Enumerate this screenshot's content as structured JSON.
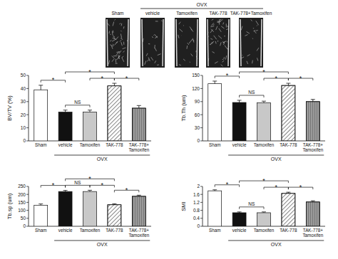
{
  "figure": {
    "group_label": "OVX",
    "panels": [
      "Sham",
      "vehicle",
      "Tamoxifen",
      "TAK-778",
      "TAK-778+Tamoxifen"
    ],
    "group_members": [
      "vehicle",
      "Tamoxifen",
      "TAK-778",
      "TAK-778+Tamoxifen"
    ]
  },
  "chart_data": [
    {
      "type": "bar",
      "y_label": "BV/TV (%)",
      "categories": [
        "Sham",
        "vehicle",
        "Tamoxifen",
        "TAK-778",
        "TAK-778+Tamoxifen"
      ],
      "values": [
        39,
        22,
        22,
        42,
        25
      ],
      "errors": [
        3.5,
        1.5,
        1.5,
        2,
        2
      ],
      "colors": [
        "#ffffff",
        "#111111",
        "#c8c8c8",
        "#ffffff",
        "#9a9a9a"
      ],
      "ylim": [
        0,
        50
      ],
      "yticks": [
        0,
        10,
        20,
        30,
        40,
        50
      ],
      "group": {
        "label": "OVX",
        "members": [
          "vehicle",
          "Tamoxifen",
          "TAK-778",
          "TAK-778+Tamoxifen"
        ]
      },
      "comparisons": [
        {
          "groups": [
            "Sham",
            "vehicle"
          ],
          "label": "*"
        },
        {
          "groups": [
            "vehicle",
            "Tamoxifen"
          ],
          "label": "NS"
        },
        {
          "groups": [
            "Tamoxifen",
            "TAK-778"
          ],
          "label": "*"
        },
        {
          "groups": [
            "vehicle",
            "TAK-778"
          ],
          "label": "*"
        },
        {
          "groups": [
            "TAK-778",
            "TAK-778+Tamoxifen"
          ],
          "label": "*"
        }
      ]
    },
    {
      "type": "bar",
      "y_label": "Tb.Th (um)",
      "categories": [
        "Sham",
        "vehicle",
        "Tamoxifen",
        "TAK-778",
        "TAK-778+Tamoxifen"
      ],
      "values": [
        131,
        88,
        87,
        127,
        90
      ],
      "errors": [
        6,
        5,
        4,
        5,
        5
      ],
      "colors": [
        "#ffffff",
        "#111111",
        "#c8c8c8",
        "#ffffff",
        "#9a9a9a"
      ],
      "ylim": [
        0,
        150
      ],
      "yticks": [
        0,
        30,
        60,
        90,
        120,
        150
      ],
      "group": {
        "label": "OVX",
        "members": [
          "vehicle",
          "Tamoxifen",
          "TAK-778",
          "TAK-778+Tamoxifen"
        ]
      },
      "comparisons": [
        {
          "groups": [
            "Sham",
            "vehicle"
          ],
          "label": "*"
        },
        {
          "groups": [
            "vehicle",
            "Tamoxifen"
          ],
          "label": "NS"
        },
        {
          "groups": [
            "Tamoxifen",
            "TAK-778"
          ],
          "label": "*"
        },
        {
          "groups": [
            "vehicle",
            "TAK-778"
          ],
          "label": "*"
        },
        {
          "groups": [
            "TAK-778",
            "TAK-778+Tamoxifen"
          ],
          "label": "*"
        }
      ]
    },
    {
      "type": "bar",
      "y_label": "Tb.sp (um)",
      "categories": [
        "Sham",
        "vehicle",
        "Tamoxifen",
        "TAK-778",
        "TAK-778+Tamoxifen"
      ],
      "values": [
        132,
        218,
        218,
        135,
        188
      ],
      "errors": [
        8,
        7,
        8,
        6,
        7
      ],
      "colors": [
        "#ffffff",
        "#111111",
        "#c8c8c8",
        "#ffffff",
        "#9a9a9a"
      ],
      "ylim": [
        0,
        250
      ],
      "yticks": [
        0,
        50,
        100,
        150,
        200,
        250
      ],
      "group": {
        "label": "OVX",
        "members": [
          "vehicle",
          "Tamoxifen",
          "TAK-778",
          "TAK-778+Tamoxifen"
        ]
      },
      "comparisons": [
        {
          "groups": [
            "Sham",
            "vehicle"
          ],
          "label": "*"
        },
        {
          "groups": [
            "vehicle",
            "Tamoxifen"
          ],
          "label": "NS"
        },
        {
          "groups": [
            "Tamoxifen",
            "TAK-778"
          ],
          "label": "*"
        },
        {
          "groups": [
            "vehicle",
            "TAK-778"
          ],
          "label": "*"
        },
        {
          "groups": [
            "TAK-778",
            "TAK-778+Tamoxifen"
          ],
          "label": "*"
        }
      ]
    },
    {
      "type": "bar",
      "y_label": "SMI",
      "categories": [
        "Sham",
        "vehicle",
        "Tamoxifen",
        "TAK-778",
        "TAK-778+Tamoxifen"
      ],
      "values": [
        1.78,
        0.68,
        0.68,
        1.65,
        1.22
      ],
      "errors": [
        0.05,
        0.04,
        0.04,
        0.06,
        0.06
      ],
      "colors": [
        "#ffffff",
        "#111111",
        "#c8c8c8",
        "#ffffff",
        "#9a9a9a"
      ],
      "ylim": [
        0,
        2
      ],
      "yticks": [
        0,
        0.4,
        0.8,
        1.2,
        1.6,
        2
      ],
      "group": {
        "label": "OVX",
        "members": [
          "vehicle",
          "Tamoxifen",
          "TAK-778",
          "TAK-778+Tamoxifen"
        ]
      },
      "comparisons": [
        {
          "groups": [
            "Sham",
            "vehicle"
          ],
          "label": "*"
        },
        {
          "groups": [
            "vehicle",
            "Tamoxifen"
          ],
          "label": "NS"
        },
        {
          "groups": [
            "Tamoxifen",
            "TAK-778"
          ],
          "label": "*"
        },
        {
          "groups": [
            "vehicle",
            "TAK-778"
          ],
          "label": "*"
        },
        {
          "groups": [
            "TAK-778",
            "TAK-778+Tamoxifen"
          ],
          "label": "*"
        }
      ]
    }
  ]
}
